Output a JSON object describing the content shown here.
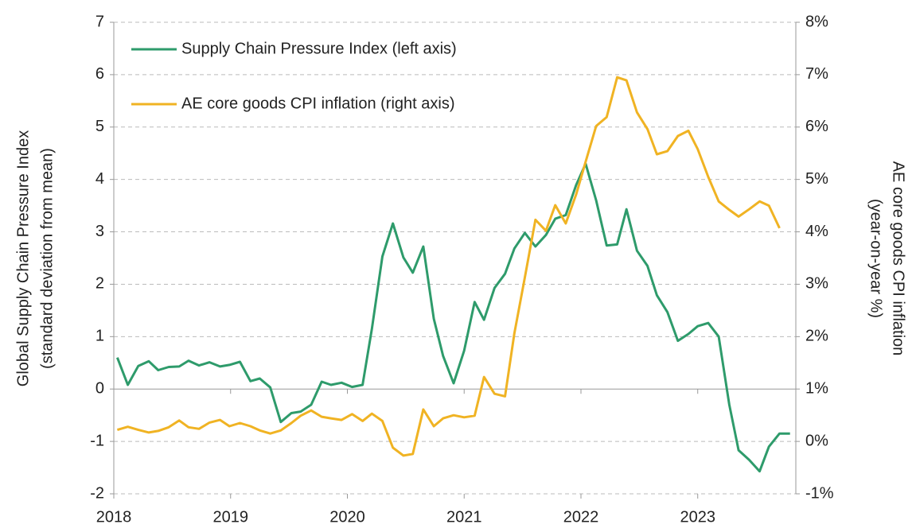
{
  "chart_data": {
    "type": "line",
    "ylabel": [
      "Global Supply Chain Pressure Index",
      "(standard deviation from mean)"
    ],
    "y2label": [
      "AE core goods CPI inflation",
      "(year-on-year %)"
    ],
    "x": [
      2018.03,
      2018.12,
      2018.21,
      2018.3,
      2018.38,
      2018.47,
      2018.56,
      2018.64,
      2018.73,
      2018.82,
      2018.91,
      2018.99,
      2019.08,
      2019.17,
      2019.25,
      2019.34,
      2019.43,
      2019.52,
      2019.6,
      2019.69,
      2019.78,
      2019.86,
      2019.95,
      2020.04,
      2020.13,
      2020.21,
      2020.3,
      2020.39,
      2020.48,
      2020.56,
      2020.65,
      2020.74,
      2020.82,
      2020.91,
      2021.0,
      2021.09,
      2021.17,
      2021.26,
      2021.35,
      2021.43,
      2021.52,
      2021.61,
      2021.7,
      2021.78,
      2021.87,
      2021.96,
      2022.04,
      2022.13,
      2022.22,
      2022.31,
      2022.39,
      2022.48,
      2022.57,
      2022.65,
      2022.74,
      2022.83,
      2022.92,
      2023.0,
      2023.09,
      2023.18,
      2023.27,
      2023.35,
      2023.44,
      2023.53,
      2023.61,
      2023.7,
      2023.79
    ],
    "series": [
      {
        "name": "Supply Chain Pressure Index (left axis)",
        "color": "#2e9b6b",
        "axis": "y",
        "values": [
          0.6,
          0.08,
          0.44,
          0.53,
          0.36,
          0.42,
          0.43,
          0.54,
          0.45,
          0.51,
          0.43,
          0.46,
          0.52,
          0.15,
          0.2,
          0.03,
          -0.63,
          -0.46,
          -0.43,
          -0.3,
          0.14,
          0.08,
          0.12,
          0.04,
          0.08,
          1.15,
          2.53,
          3.16,
          2.51,
          2.22,
          2.72,
          1.34,
          0.63,
          0.11,
          0.73,
          1.66,
          1.32,
          1.93,
          2.2,
          2.68,
          2.98,
          2.72,
          2.94,
          3.25,
          3.32,
          3.9,
          4.3,
          3.6,
          2.74,
          2.76,
          3.43,
          2.64,
          2.35,
          1.79,
          1.47,
          0.92,
          1.05,
          1.2,
          1.26,
          1.0,
          -0.3,
          -1.17,
          -1.35,
          -1.57,
          -1.1,
          -0.85,
          -0.85
        ]
      },
      {
        "name": "AE core goods CPI inflation (right axis)",
        "color": "#f0b323",
        "axis": "y2",
        "values": [
          0.22,
          0.28,
          0.22,
          0.17,
          0.2,
          0.27,
          0.4,
          0.27,
          0.24,
          0.36,
          0.41,
          0.29,
          0.35,
          0.29,
          0.21,
          0.15,
          0.21,
          0.35,
          0.49,
          0.59,
          0.47,
          0.44,
          0.41,
          0.52,
          0.39,
          0.53,
          0.39,
          -0.12,
          -0.27,
          -0.24,
          0.61,
          0.29,
          0.44,
          0.5,
          0.46,
          0.49,
          1.23,
          0.91,
          0.86,
          2.06,
          3.13,
          4.23,
          4.02,
          4.51,
          4.16,
          4.72,
          5.34,
          6.02,
          6.19,
          6.95,
          6.89,
          6.28,
          5.96,
          5.48,
          5.54,
          5.83,
          5.93,
          5.58,
          5.05,
          4.58,
          4.42,
          4.29,
          4.43,
          4.58,
          4.5,
          4.07,
          null
        ]
      }
    ],
    "xlim": [
      2018,
      2023.84
    ],
    "xticks": [
      2018,
      2019,
      2020,
      2021,
      2022,
      2023
    ],
    "ylim": [
      -2,
      7
    ],
    "yticks": [
      -2,
      -1,
      0,
      1,
      2,
      3,
      4,
      5,
      6,
      7
    ],
    "y2lim": [
      -1,
      8
    ],
    "y2ticks": [
      {
        "value": -1,
        "label": "-1%"
      },
      {
        "value": 0,
        "label": "0%"
      },
      {
        "value": 1,
        "label": "1%"
      },
      {
        "value": 2,
        "label": "2%"
      },
      {
        "value": 3,
        "label": "3%"
      },
      {
        "value": 4,
        "label": "4%"
      },
      {
        "value": 5,
        "label": "5%"
      },
      {
        "value": 6,
        "label": "6%"
      },
      {
        "value": 7,
        "label": "7%"
      },
      {
        "value": 8,
        "label": "8%"
      }
    ],
    "grid": true,
    "legend": "upper left"
  }
}
